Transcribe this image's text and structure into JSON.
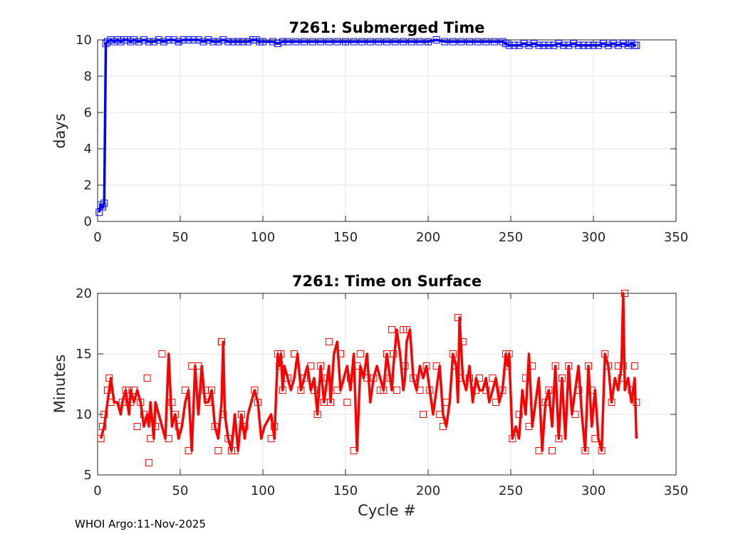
{
  "footer": "WHOI Argo:11-Nov-2025",
  "chart_data": [
    {
      "type": "line",
      "title": "7261: Submerged Time",
      "xlabel": "",
      "ylabel": "days",
      "xlim": [
        0,
        350
      ],
      "ylim": [
        0,
        10
      ],
      "xticks": [
        0,
        50,
        100,
        150,
        200,
        250,
        300,
        350
      ],
      "yticks": [
        0,
        2,
        4,
        6,
        8,
        10
      ],
      "grid": true,
      "color": "#0000ff",
      "marker": "square",
      "x": [
        1,
        2,
        3,
        4,
        5,
        6,
        8,
        10,
        12,
        14,
        16,
        18,
        20,
        22,
        25,
        28,
        31,
        34,
        37,
        40,
        43,
        46,
        49,
        52,
        55,
        58,
        61,
        64,
        67,
        70,
        73,
        76,
        79,
        82,
        85,
        88,
        91,
        94,
        96,
        98,
        100,
        106,
        109,
        112,
        115,
        120,
        125,
        130,
        135,
        140,
        145,
        150,
        155,
        160,
        165,
        170,
        175,
        180,
        185,
        190,
        195,
        200,
        205,
        210,
        215,
        220,
        225,
        230,
        235,
        240,
        245,
        247,
        249,
        252,
        255,
        258,
        261,
        264,
        267,
        270,
        273,
        276,
        279,
        282,
        285,
        288,
        291,
        294,
        297,
        300,
        303,
        306,
        309,
        312,
        315,
        318,
        321,
        323,
        325,
        326
      ],
      "y": [
        0.5,
        0.9,
        0.8,
        1.0,
        9.8,
        9.9,
        10.0,
        9.9,
        10.0,
        9.9,
        10.0,
        10.0,
        9.9,
        10.0,
        9.9,
        10.0,
        9.9,
        9.9,
        10.0,
        9.9,
        10.0,
        10.0,
        9.9,
        10.0,
        10.0,
        10.0,
        10.0,
        9.9,
        10.0,
        9.9,
        9.9,
        10.0,
        9.9,
        9.9,
        9.9,
        9.9,
        9.9,
        10.0,
        10.0,
        9.9,
        9.9,
        9.9,
        9.8,
        9.9,
        9.9,
        9.9,
        9.9,
        9.9,
        9.9,
        9.9,
        9.9,
        9.9,
        9.9,
        9.9,
        9.9,
        9.9,
        9.9,
        9.9,
        9.9,
        9.9,
        9.9,
        9.9,
        10.0,
        9.9,
        9.9,
        9.9,
        9.9,
        9.9,
        9.9,
        9.9,
        9.9,
        9.8,
        9.7,
        9.7,
        9.7,
        9.8,
        9.7,
        9.8,
        9.7,
        9.7,
        9.7,
        9.7,
        9.8,
        9.7,
        9.7,
        9.8,
        9.7,
        9.7,
        9.7,
        9.7,
        9.7,
        9.8,
        9.7,
        9.8,
        9.7,
        9.8,
        9.7,
        9.8,
        9.7,
        9.7
      ]
    },
    {
      "type": "line",
      "title": "7261: Time on Surface",
      "xlabel": "Cycle #",
      "ylabel": "Minutes",
      "xlim": [
        0,
        350
      ],
      "ylim": [
        5,
        20
      ],
      "xticks": [
        0,
        50,
        100,
        150,
        200,
        250,
        300,
        350
      ],
      "yticks": [
        5,
        10,
        15,
        20
      ],
      "grid": true,
      "color": "#ff0000",
      "marker": "square",
      "x": [
        2,
        4,
        6,
        7,
        8,
        10,
        12,
        14,
        15,
        17,
        19,
        20,
        22,
        24,
        26,
        28,
        30,
        31,
        32,
        34,
        35,
        37,
        39,
        41,
        43,
        45,
        47,
        49,
        51,
        53,
        55,
        57,
        59,
        61,
        63,
        65,
        67,
        69,
        71,
        73,
        75,
        76,
        77,
        79,
        81,
        83,
        85,
        87,
        89,
        91,
        95,
        97,
        99,
        101,
        105,
        107,
        109,
        110,
        111,
        112,
        113,
        115,
        117,
        119,
        121,
        123,
        125,
        127,
        129,
        131,
        133,
        135,
        137,
        139,
        140,
        141,
        143,
        145,
        147,
        149,
        151,
        153,
        155,
        157,
        159,
        161,
        163,
        165,
        167,
        169,
        171,
        173,
        175,
        177,
        178,
        179,
        181,
        183,
        185,
        186,
        187,
        189,
        191,
        193,
        195,
        197,
        199,
        201,
        203,
        205,
        207,
        209,
        211,
        213,
        215,
        217,
        218,
        219,
        221,
        223,
        225,
        227,
        229,
        231,
        233,
        235,
        237,
        239,
        241,
        243,
        245,
        247,
        248,
        249,
        251,
        253,
        255,
        257,
        259,
        261,
        263,
        265,
        267,
        269,
        271,
        273,
        275,
        277,
        279,
        281,
        283,
        285,
        287,
        289,
        291,
        293,
        295,
        297,
        299,
        301,
        303,
        305,
        307,
        309,
        311,
        313,
        315,
        317,
        318,
        319,
        321,
        323,
        325,
        326
      ],
      "y": [
        8,
        9,
        11,
        12,
        13,
        11,
        11,
        10,
        11,
        12,
        10,
        12,
        11,
        12,
        11,
        9,
        10,
        9,
        11,
        8,
        11,
        10,
        9,
        8,
        15,
        9,
        10,
        8,
        9,
        11,
        12,
        7,
        14,
        10,
        14,
        11,
        11,
        12,
        9,
        8,
        11,
        16,
        10,
        8,
        7,
        10,
        7,
        10,
        8,
        10,
        12,
        11,
        8,
        9,
        10,
        8,
        15,
        14,
        15,
        12,
        14,
        13,
        12,
        13,
        15,
        12,
        13,
        14,
        12,
        13,
        10,
        14,
        11,
        13,
        14,
        11,
        15,
        16,
        12,
        13,
        14,
        12,
        15,
        7,
        14,
        13,
        15,
        11,
        13,
        14,
        13,
        12,
        15,
        13,
        12,
        14,
        17,
        15,
        12,
        13,
        16,
        17,
        13,
        12,
        14,
        13,
        14,
        12,
        10,
        12,
        14,
        10,
        9,
        11,
        15,
        14,
        11,
        18,
        13,
        12,
        14,
        11,
        13,
        12,
        12,
        13,
        11,
        12,
        13,
        11,
        12,
        15,
        14,
        15,
        8,
        9,
        8,
        12,
        10,
        15,
        9,
        11,
        13,
        7,
        11,
        12,
        9,
        14,
        8,
        13,
        8,
        14,
        10,
        12,
        14,
        10,
        7,
        14,
        9,
        12,
        8,
        7,
        15,
        14,
        11,
        13,
        12,
        14,
        20,
        12,
        13,
        11,
        13,
        8
      ],
      "markers_x": [
        2,
        3,
        4,
        6,
        7,
        8,
        15,
        17,
        19,
        20,
        22,
        24,
        26,
        28,
        30,
        31,
        32,
        35,
        39,
        43,
        45,
        47,
        49,
        53,
        55,
        57,
        61,
        65,
        67,
        69,
        71,
        73,
        75,
        76,
        79,
        81,
        83,
        87,
        89,
        95,
        97,
        105,
        107,
        109,
        110,
        111,
        112,
        115,
        119,
        123,
        125,
        129,
        131,
        133,
        135,
        137,
        139,
        140,
        141,
        145,
        147,
        151,
        153,
        155,
        157,
        159,
        163,
        167,
        171,
        173,
        175,
        177,
        178,
        179,
        181,
        185,
        186,
        187,
        191,
        195,
        197,
        199,
        201,
        205,
        207,
        209,
        211,
        215,
        217,
        218,
        219,
        221,
        225,
        229,
        231,
        235,
        239,
        241,
        245,
        247,
        248,
        249,
        251,
        255,
        259,
        261,
        263,
        267,
        271,
        273,
        275,
        277,
        279,
        281,
        285,
        289,
        291,
        295,
        297,
        299,
        301,
        305,
        307,
        309,
        311,
        315,
        317,
        318,
        319,
        323,
        325,
        326
      ],
      "markers_y": [
        8,
        9,
        10,
        12,
        13,
        11,
        11,
        12,
        12,
        11,
        12,
        9,
        11,
        10,
        13,
        6,
        8,
        9,
        15,
        8,
        11,
        10,
        9,
        12,
        7,
        14,
        14,
        12,
        11,
        12,
        9,
        7,
        16,
        10,
        8,
        7,
        7,
        10,
        9,
        12,
        11,
        8,
        9,
        15,
        14,
        15,
        12,
        13,
        15,
        12,
        13,
        14,
        12,
        10,
        14,
        11,
        13,
        16,
        11,
        12,
        15,
        11,
        13,
        7,
        14,
        15,
        13,
        13,
        12,
        12,
        15,
        13,
        17,
        15,
        12,
        17,
        14,
        17,
        13,
        12,
        10,
        14,
        12,
        14,
        10,
        9,
        11,
        15,
        14,
        18,
        13,
        16,
        13,
        12,
        13,
        12,
        13,
        11,
        12,
        15,
        14,
        15,
        8,
        10,
        13,
        9,
        14,
        7,
        11,
        12,
        7,
        14,
        8,
        13,
        14,
        10,
        12,
        7,
        14,
        12,
        8,
        7,
        15,
        14,
        11,
        14,
        13,
        14,
        20,
        12,
        14,
        11
      ],
      "marker_note": "markers drawn at observed points"
    }
  ]
}
